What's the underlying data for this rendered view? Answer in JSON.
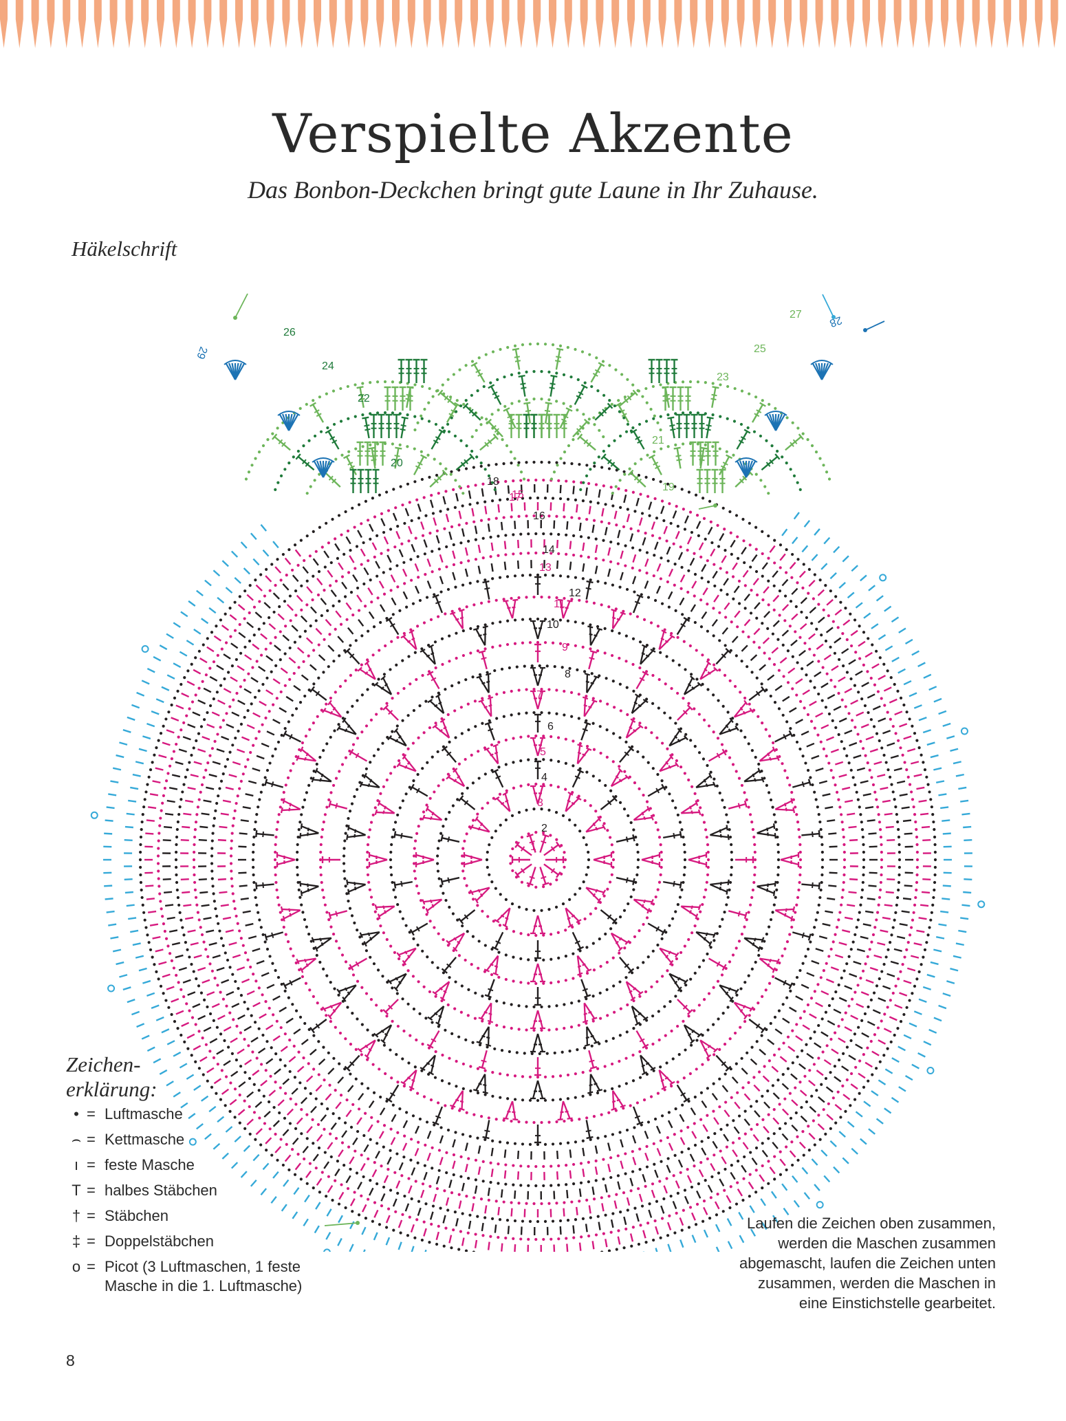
{
  "page": {
    "title": "Verspielte Akzente",
    "subtitle": "Das Bonbon-Deckchen bringt gute Laune in Ihr Zuhause.",
    "section_label": "Häkelschrift",
    "page_number": "8"
  },
  "colors": {
    "border": "#f4a980",
    "black": "#231f20",
    "magenta": "#d6197f",
    "cyan": "#35a9d8",
    "blue": "#1c73b4",
    "green_light": "#6db55a",
    "green_dark": "#1f7a3a"
  },
  "diagram": {
    "round_labels_black": [
      "2",
      "4",
      "6",
      "8",
      "10",
      "12",
      "14",
      "16",
      "18"
    ],
    "round_labels_magenta": [
      "1",
      "3",
      "5",
      "7",
      "9",
      "11",
      "13",
      "15",
      "17"
    ],
    "round_labels_green": [
      "19",
      "20",
      "21",
      "22",
      "23",
      "24",
      "25",
      "26",
      "27"
    ],
    "round_labels_blue": [
      "28",
      "29"
    ]
  },
  "legend": {
    "heading_line1": "Zeichen-",
    "heading_line2": "erklärung:",
    "items": [
      {
        "icon": "chain-dot-icon",
        "symbol": "•",
        "text": "Luftmasche"
      },
      {
        "icon": "slip-stitch-icon",
        "symbol": "⌢",
        "text": "Kettmasche"
      },
      {
        "icon": "single-crochet-icon",
        "symbol": "ı",
        "text": "feste Masche"
      },
      {
        "icon": "half-double-icon",
        "symbol": "T",
        "text": "halbes Stäbchen"
      },
      {
        "icon": "double-crochet-icon",
        "symbol": "†",
        "text": "Stäbchen"
      },
      {
        "icon": "treble-crochet-icon",
        "symbol": "‡",
        "text": "Doppelstäbchen"
      },
      {
        "icon": "picot-icon",
        "symbol": "o",
        "text": "Picot (3 Luftmaschen, 1 feste Masche in die 1. Luftmasche)"
      }
    ],
    "equals": "="
  },
  "note": "Laufen die Zeichen oben zusammen, werden die Maschen zusammen abgemascht, laufen die Zeichen unten zusammen, werden die Maschen in eine Einstichstelle gearbeitet."
}
